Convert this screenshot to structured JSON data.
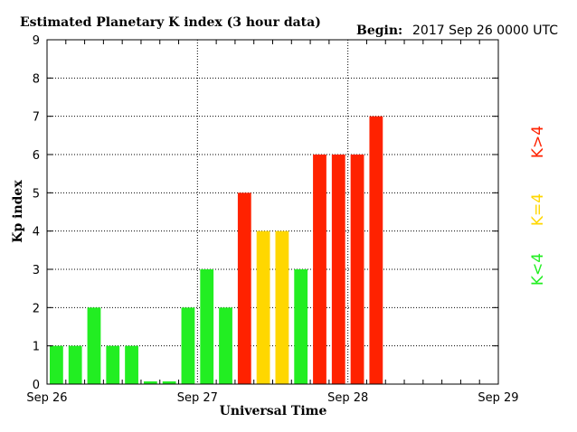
{
  "chart_data": {
    "type": "bar",
    "title": "Estimated Planetary K index (3 hour data)",
    "begin_label": "Begin:",
    "begin_value": "2017 Sep 26 0000 UTC",
    "xlabel": "Universal Time",
    "ylabel": "Kp index",
    "ylim": [
      0,
      9
    ],
    "yticks": [
      "0",
      "1",
      "2",
      "3",
      "4",
      "5",
      "6",
      "7",
      "8",
      "9"
    ],
    "xticks": [
      "Sep 26",
      "Sep 27",
      "Sep 28",
      "Sep 29"
    ],
    "grid": true,
    "slots_total": 24,
    "values": [
      1,
      1,
      2,
      1,
      1,
      0,
      0,
      2,
      3,
      2,
      5,
      4,
      4,
      3,
      6,
      6,
      6,
      7
    ],
    "colors": {
      "low": "#22ee22",
      "storm": "#ffd700",
      "high": "#ff2200"
    },
    "legend": [
      {
        "label": "K<4",
        "color": "#22ee22"
      },
      {
        "label": "K=4",
        "color": "#ffd700"
      },
      {
        "label": "K>4",
        "color": "#ff2200"
      }
    ]
  }
}
